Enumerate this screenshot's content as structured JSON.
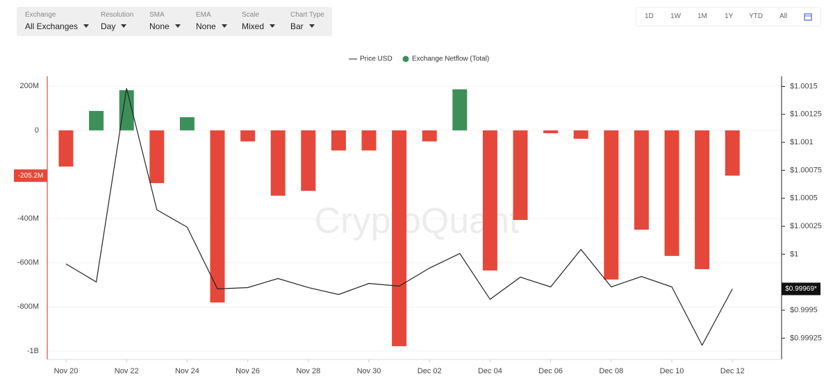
{
  "toolbar": [
    {
      "label": "Exchange",
      "value": "All Exchanges"
    },
    {
      "label": "Resolution",
      "value": "Day"
    },
    {
      "label": "SMA",
      "value": "None"
    },
    {
      "label": "EMA",
      "value": "None"
    },
    {
      "label": "Scale",
      "value": "Mixed"
    },
    {
      "label": "Chart Type",
      "value": "Bar"
    }
  ],
  "ranges": [
    "1D",
    "1W",
    "1M",
    "1Y",
    "YTD",
    "All"
  ],
  "chart_data": {
    "type": "bar",
    "watermark": "CryptoQuant",
    "categories": [
      "Nov 20",
      null,
      "Nov 22",
      null,
      "Nov 24",
      null,
      "Nov 26",
      null,
      "Nov 28",
      null,
      "Nov 30",
      null,
      "Dec 02",
      null,
      "Dec 04",
      null,
      "Dec 06",
      null,
      "Dec 08",
      null,
      "Dec 10",
      null,
      "Dec 12"
    ],
    "series": [
      {
        "name": "Price USD",
        "type": "line",
        "axis": "y2",
        "color": "#222222",
        "values": [
          0.999913,
          0.999752,
          1.001483,
          1.000397,
          1.000242,
          0.99969,
          0.999702,
          0.999783,
          0.999702,
          0.99964,
          0.999739,
          0.999715,
          0.999876,
          1.000006,
          0.999597,
          0.999795,
          0.999708,
          1.000043,
          0.999708,
          0.999801,
          0.999708,
          0.999187,
          0.99969
        ]
      },
      {
        "name": "Exchange Netflow (Total)",
        "type": "bar",
        "color": "#3d8f5a",
        "negative_color": "#e5483a",
        "values": [
          -164,
          88,
          182,
          -239,
          60,
          -780,
          -50,
          -296,
          -274,
          -91,
          -91,
          -978,
          -50,
          186,
          -635,
          -406,
          -13,
          -38,
          -676,
          -450,
          -569,
          -629,
          -205.2
        ]
      }
    ],
    "ylim": [
      -1038,
      245
    ],
    "yticks": [
      {
        "value": 200,
        "label": "200M"
      },
      0,
      {
        "value": -400,
        "label": "-400M"
      },
      {
        "value": -600,
        "label": "-600M"
      },
      {
        "value": -800,
        "label": "-800M"
      },
      {
        "value": -1000,
        "label": "-1B"
      }
    ],
    "y2lim": [
      0.99906,
      1.00159
    ],
    "y2ticks": [
      {
        "value": 1.0015,
        "label": "$1.0015"
      },
      {
        "value": 1.00125,
        "label": "$1.00125"
      },
      {
        "value": 1.001,
        "label": "$1.001"
      },
      {
        "value": 1.00075,
        "label": "$1.00075"
      },
      {
        "value": 1.0005,
        "label": "$1.0005"
      },
      {
        "value": 1.00025,
        "label": "$1.00025"
      },
      {
        "value": 1,
        "label": "$1"
      },
      {
        "value": 0.9995,
        "label": "$0.9995"
      },
      {
        "value": 0.99925,
        "label": "$0.99925"
      }
    ],
    "crosshair": {
      "value": -205.2,
      "label": "-205.2M"
    },
    "last_price": {
      "value": 0.99969,
      "label": "$0.99969*"
    },
    "grid": true
  }
}
